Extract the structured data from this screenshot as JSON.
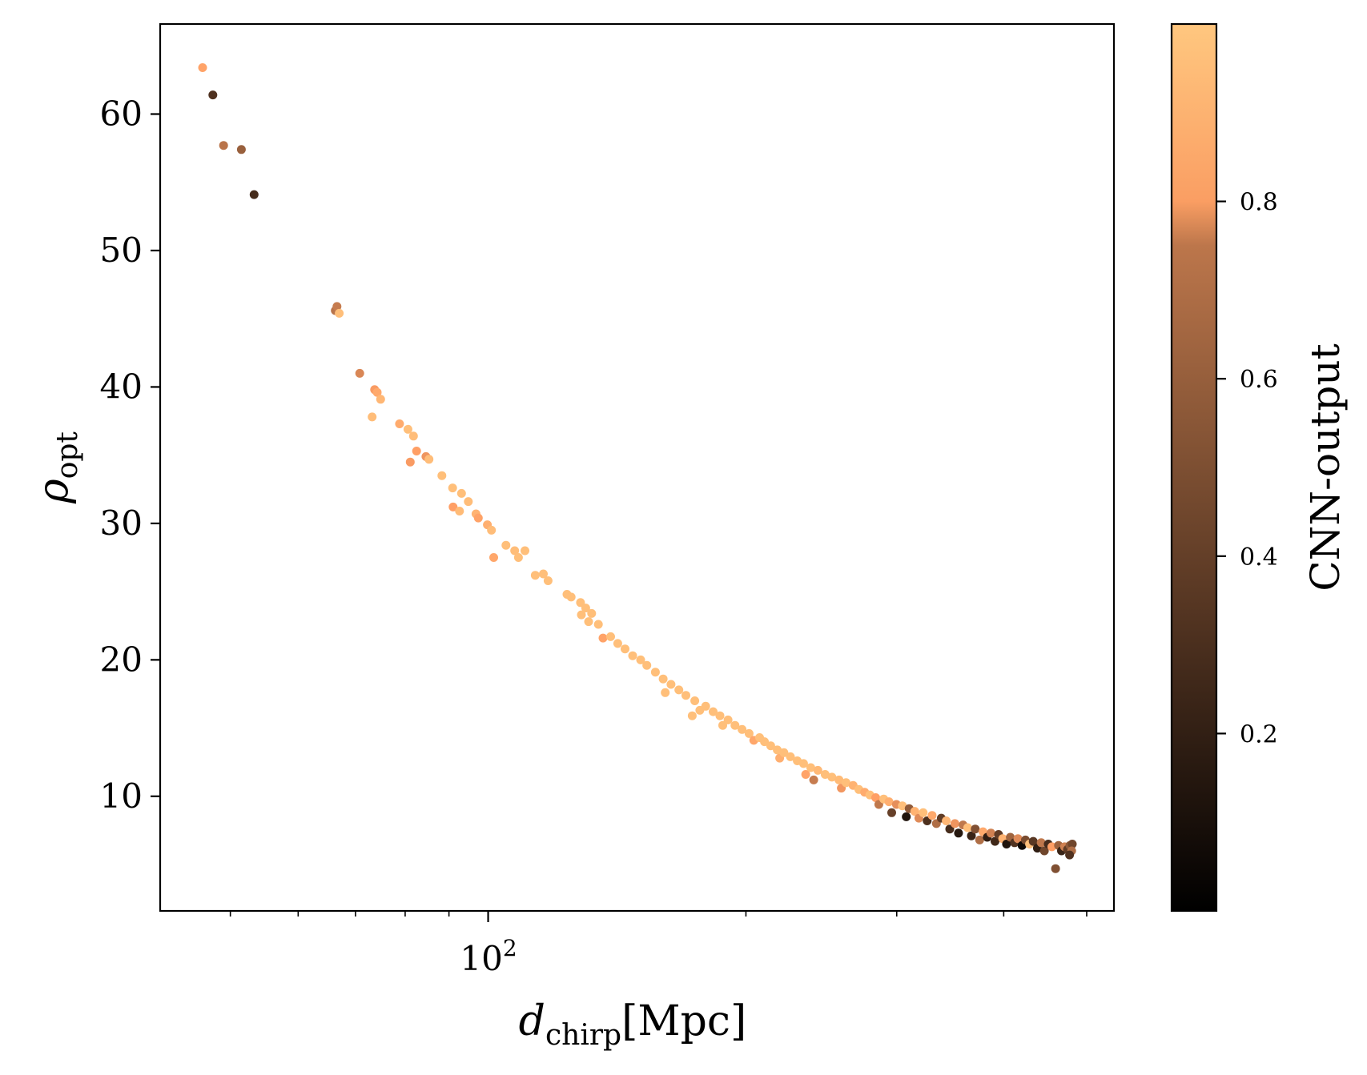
{
  "chart_data": {
    "type": "scatter",
    "title": "",
    "xlabel": "d_chirp [Mpc]",
    "xlabel_parts": {
      "main": "d",
      "sub": "chirp",
      "unit": "[Mpc]"
    },
    "ylabel": "ρ_opt",
    "ylabel_parts": {
      "main": "ρ",
      "sub": "opt"
    },
    "xscale": "log",
    "xlim": [
      41.4,
      538
    ],
    "ylim": [
      1.6,
      66.6
    ],
    "grid": false,
    "x_major_ticks": [
      {
        "value": 100,
        "label_base": "10",
        "label_exp": "2"
      }
    ],
    "x_minor_ticks": [
      50,
      60,
      70,
      80,
      90,
      200,
      300,
      400,
      500
    ],
    "y_ticks": [
      {
        "value": 10,
        "label": "10"
      },
      {
        "value": 20,
        "label": "20"
      },
      {
        "value": 30,
        "label": "30"
      },
      {
        "value": 40,
        "label": "40"
      },
      {
        "value": 50,
        "label": "50"
      },
      {
        "value": 60,
        "label": "60"
      }
    ],
    "colorbar": {
      "label": "CNN-output",
      "colormap": "copper",
      "range": [
        0.0,
        1.0
      ],
      "ticks": [
        {
          "value": 0.2,
          "label": "0.2"
        },
        {
          "value": 0.4,
          "label": "0.4"
        },
        {
          "value": 0.6,
          "label": "0.6"
        },
        {
          "value": 0.8,
          "label": "0.8"
        }
      ]
    },
    "series_fields": [
      "d_chirp",
      "rho_opt",
      "cnn_output"
    ],
    "points": [
      [
        46.4,
        63.4,
        0.82
      ],
      [
        47.7,
        61.4,
        0.25
      ],
      [
        49.1,
        57.7,
        0.58
      ],
      [
        51.5,
        57.4,
        0.48
      ],
      [
        53.3,
        54.1,
        0.22
      ],
      [
        66.3,
        45.6,
        0.58
      ],
      [
        66.6,
        45.9,
        0.62
      ],
      [
        67.0,
        45.4,
        0.96
      ],
      [
        70.8,
        41.0,
        0.68
      ],
      [
        73.7,
        39.8,
        0.78
      ],
      [
        74.2,
        39.6,
        0.85
      ],
      [
        74.9,
        39.1,
        0.92
      ],
      [
        73.2,
        37.8,
        0.95
      ],
      [
        78.8,
        37.3,
        0.86
      ],
      [
        80.6,
        36.9,
        0.96
      ],
      [
        81.8,
        36.4,
        0.95
      ],
      [
        82.5,
        35.3,
        0.8
      ],
      [
        81.1,
        34.5,
        0.78
      ],
      [
        84.6,
        34.9,
        0.75
      ],
      [
        85.3,
        34.7,
        0.95
      ],
      [
        88.3,
        33.5,
        0.96
      ],
      [
        90.9,
        32.6,
        0.96
      ],
      [
        93.1,
        32.2,
        0.96
      ],
      [
        91.0,
        31.2,
        0.8
      ],
      [
        92.6,
        30.9,
        0.94
      ],
      [
        94.8,
        31.6,
        0.95
      ],
      [
        96.8,
        30.7,
        0.9
      ],
      [
        97.4,
        30.4,
        0.82
      ],
      [
        99.8,
        29.9,
        0.88
      ],
      [
        100.9,
        29.5,
        0.95
      ],
      [
        101.5,
        27.5,
        0.84
      ],
      [
        104.9,
        28.4,
        0.96
      ],
      [
        107.4,
        28.0,
        0.95
      ],
      [
        108.5,
        27.5,
        0.96
      ],
      [
        110.4,
        28.0,
        0.96
      ],
      [
        113.5,
        26.2,
        0.96
      ],
      [
        116.0,
        26.3,
        0.96
      ],
      [
        117.5,
        25.8,
        0.96
      ],
      [
        123.6,
        24.8,
        0.96
      ],
      [
        125.0,
        24.6,
        0.96
      ],
      [
        128.2,
        24.2,
        0.96
      ],
      [
        130.0,
        23.8,
        0.96
      ],
      [
        128.5,
        23.3,
        0.96
      ],
      [
        132.1,
        23.4,
        0.96
      ],
      [
        131.0,
        22.8,
        0.96
      ],
      [
        134.5,
        22.6,
        0.96
      ],
      [
        136.2,
        21.6,
        0.82
      ],
      [
        139.0,
        21.7,
        0.96
      ],
      [
        141.7,
        21.2,
        0.96
      ],
      [
        144.5,
        20.8,
        0.96
      ],
      [
        147.5,
        20.3,
        0.96
      ],
      [
        150.7,
        20.0,
        0.96
      ],
      [
        153.2,
        19.6,
        0.96
      ],
      [
        156.8,
        19.1,
        0.96
      ],
      [
        160.1,
        18.6,
        0.96
      ],
      [
        163.5,
        18.2,
        0.96
      ],
      [
        161.0,
        17.6,
        0.96
      ],
      [
        167.0,
        17.8,
        0.96
      ],
      [
        170.2,
        17.4,
        0.96
      ],
      [
        174.3,
        17.0,
        0.96
      ],
      [
        176.7,
        16.3,
        0.96
      ],
      [
        173.1,
        15.9,
        0.96
      ],
      [
        179.5,
        16.6,
        0.96
      ],
      [
        183.1,
        16.2,
        0.96
      ],
      [
        186.5,
        15.9,
        0.96
      ],
      [
        187.9,
        15.2,
        0.96
      ],
      [
        190.6,
        15.6,
        0.96
      ],
      [
        194.2,
        15.2,
        0.96
      ],
      [
        197.9,
        14.9,
        0.96
      ],
      [
        201.7,
        14.6,
        0.96
      ],
      [
        204.3,
        14.1,
        0.84
      ],
      [
        207.5,
        14.3,
        0.96
      ],
      [
        210.2,
        14.0,
        0.96
      ],
      [
        213.8,
        13.7,
        0.96
      ],
      [
        217.6,
        13.4,
        0.96
      ],
      [
        219.0,
        12.8,
        0.88
      ],
      [
        221.5,
        13.2,
        0.96
      ],
      [
        225.4,
        12.9,
        0.96
      ],
      [
        229.6,
        12.6,
        0.96
      ],
      [
        233.5,
        12.4,
        0.96
      ],
      [
        234.9,
        11.6,
        0.82
      ],
      [
        238.1,
        12.1,
        0.96
      ],
      [
        242.7,
        11.9,
        0.93
      ],
      [
        240.0,
        11.2,
        0.62
      ],
      [
        247.5,
        11.6,
        0.96
      ],
      [
        252.0,
        11.4,
        0.96
      ],
      [
        256.9,
        11.2,
        0.94
      ],
      [
        258.5,
        10.6,
        0.76
      ],
      [
        261.8,
        11.0,
        0.96
      ],
      [
        266.8,
        10.8,
        0.9
      ],
      [
        271.0,
        10.5,
        0.96
      ],
      [
        275.2,
        10.3,
        0.86
      ],
      [
        279.1,
        10.1,
        0.96
      ],
      [
        283.5,
        9.9,
        0.8
      ],
      [
        285.9,
        9.4,
        0.6
      ],
      [
        289.7,
        9.8,
        0.96
      ],
      [
        293.8,
        9.6,
        0.88
      ],
      [
        296.0,
        8.8,
        0.32
      ],
      [
        299.8,
        9.4,
        0.72
      ],
      [
        304.6,
        9.3,
        0.96
      ],
      [
        307.8,
        8.5,
        0.1
      ],
      [
        310.2,
        9.1,
        0.45
      ],
      [
        314.9,
        8.9,
        0.9
      ],
      [
        318.4,
        8.4,
        0.7
      ],
      [
        322.1,
        8.8,
        0.96
      ],
      [
        325.6,
        8.2,
        0.24
      ],
      [
        329.9,
        8.6,
        0.85
      ],
      [
        333.8,
        8.0,
        0.55
      ],
      [
        338.2,
        8.4,
        0.3
      ],
      [
        342.7,
        8.2,
        0.92
      ],
      [
        346.0,
        7.6,
        0.22
      ],
      [
        350.8,
        8.0,
        0.75
      ],
      [
        354.2,
        7.3,
        0.12
      ],
      [
        358.6,
        7.9,
        0.6
      ],
      [
        363.1,
        7.7,
        0.96
      ],
      [
        366.7,
        7.1,
        0.18
      ],
      [
        370.5,
        7.6,
        0.4
      ],
      [
        374.9,
        6.8,
        0.55
      ],
      [
        378.3,
        7.4,
        0.85
      ],
      [
        382.7,
        7.0,
        0.15
      ],
      [
        386.5,
        7.3,
        0.65
      ],
      [
        390.8,
        6.7,
        0.2
      ],
      [
        394.5,
        7.2,
        0.3
      ],
      [
        398.9,
        6.9,
        0.9
      ],
      [
        403.1,
        6.5,
        0.1
      ],
      [
        407.2,
        7.0,
        0.5
      ],
      [
        411.8,
        6.6,
        0.25
      ],
      [
        415.6,
        6.9,
        0.7
      ],
      [
        420.3,
        6.4,
        0.05
      ],
      [
        424.1,
        6.8,
        0.38
      ],
      [
        428.8,
        6.5,
        0.96
      ],
      [
        433.0,
        6.7,
        0.28
      ],
      [
        437.9,
        6.2,
        0.15
      ],
      [
        442.5,
        6.6,
        0.6
      ],
      [
        446.2,
        6.0,
        0.35
      ],
      [
        450.9,
        6.5,
        0.22
      ],
      [
        455.3,
        6.3,
        0.8
      ],
      [
        459.8,
        4.7,
        0.4
      ],
      [
        463.5,
        6.4,
        0.5
      ],
      [
        467.2,
        6.0,
        0.18
      ],
      [
        471.1,
        6.3,
        0.65
      ],
      [
        474.8,
        6.1,
        0.3
      ],
      [
        478.0,
        6.4,
        0.45
      ],
      [
        481.0,
        6.5,
        0.35
      ],
      [
        480.2,
        6.0,
        0.55
      ],
      [
        477.5,
        5.7,
        0.25
      ]
    ]
  }
}
